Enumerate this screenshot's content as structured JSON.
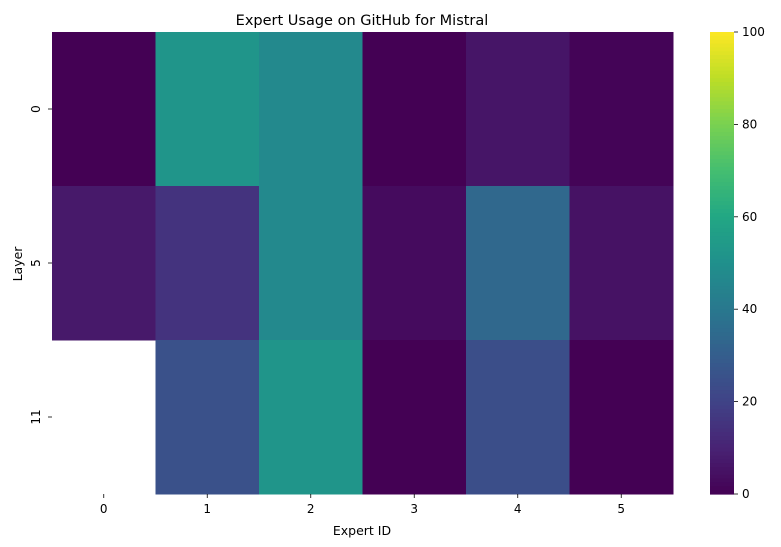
{
  "chart_data": {
    "type": "heatmap",
    "title": "Expert Usage on GitHub for Mistral",
    "xlabel": "Expert ID",
    "ylabel": "Layer",
    "x_categories": [
      "0",
      "1",
      "2",
      "3",
      "4",
      "5"
    ],
    "y_categories": [
      "0",
      "5",
      "11"
    ],
    "values": [
      [
        0,
        52,
        47,
        0,
        6,
        1
      ],
      [
        7,
        15,
        47,
        3,
        34,
        5
      ],
      [
        null,
        25,
        52,
        0,
        24,
        0
      ]
    ],
    "colorbar": {
      "min": 0,
      "max": 100,
      "ticks": [
        "0",
        "20",
        "40",
        "60",
        "80",
        "100"
      ],
      "colormap": "viridis"
    }
  }
}
